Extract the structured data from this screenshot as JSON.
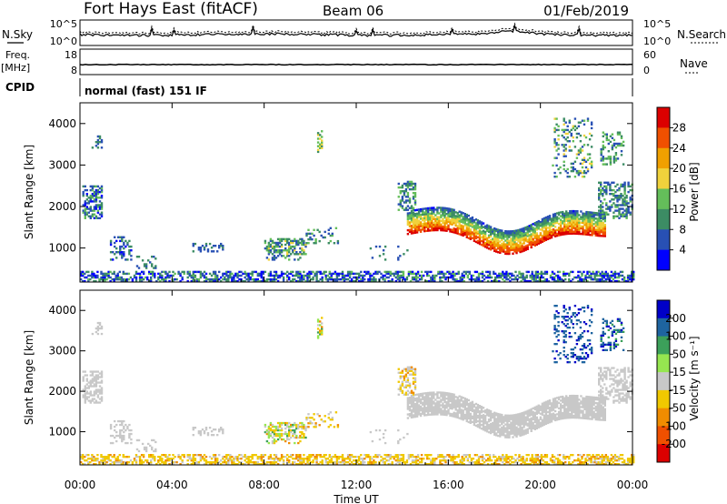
{
  "header": {
    "station": "Fort Hays East (fitACF)",
    "beam": "Beam 06",
    "date": "01/Feb/2019"
  },
  "noise_panel": {
    "left_label": "N.Sky",
    "left_ticks": [
      "10^5",
      "10^0"
    ],
    "right_ticks": [
      "10^5",
      "10^0"
    ],
    "right_label": "N.Search"
  },
  "freq_panel": {
    "left_label_top": "Freq.",
    "left_label_unit": "[MHz]",
    "left_ticks": [
      "18",
      "8"
    ],
    "right_ticks": [
      "60",
      "0"
    ],
    "right_label": "Nave"
  },
  "cpid": {
    "label": "CPID",
    "mode": "normal (fast) 151 IF"
  },
  "x_axis": {
    "ticks": [
      "00:00",
      "04:00",
      "08:00",
      "12:00",
      "16:00",
      "20:00",
      "00:00"
    ],
    "label": "Time UT"
  },
  "colors": {
    "power": [
      "#0000ff",
      "#2850b4",
      "#3c8c64",
      "#64be5a",
      "#f0d23c",
      "#f0a000",
      "#f05000",
      "#dc0000"
    ],
    "velocity": [
      "#dc0000",
      "#f05000",
      "#f08c00",
      "#f0c800",
      "#c8c8c8",
      "#96e650",
      "#3ca05a",
      "#1e64a0",
      "#0000c8"
    ]
  },
  "chart_data": [
    {
      "type": "heatmap",
      "panel": "power",
      "ylabel": "Slant Range [km]",
      "y_ticks": [
        "1000",
        "2000",
        "3000",
        "4000"
      ],
      "ylim": [
        180,
        4500
      ],
      "xlim": [
        0,
        24
      ],
      "colorbar": {
        "label": "Power [dB]",
        "ticks": [
          "4",
          "8",
          "12",
          "16",
          "20",
          "24",
          "28"
        ],
        "range": [
          0,
          32
        ]
      }
    },
    {
      "type": "heatmap",
      "panel": "velocity",
      "ylabel": "Slant Range [km]",
      "y_ticks": [
        "1000",
        "2000",
        "3000",
        "4000"
      ],
      "ylim": [
        180,
        4500
      ],
      "xlim": [
        0,
        24
      ],
      "colorbar": {
        "label": "Velocity [m s⁻¹]",
        "ticks": [
          "200",
          "100",
          "50",
          "15",
          "-15",
          "-50",
          "-100",
          "-200"
        ],
        "range": [
          -250,
          250
        ]
      }
    }
  ]
}
